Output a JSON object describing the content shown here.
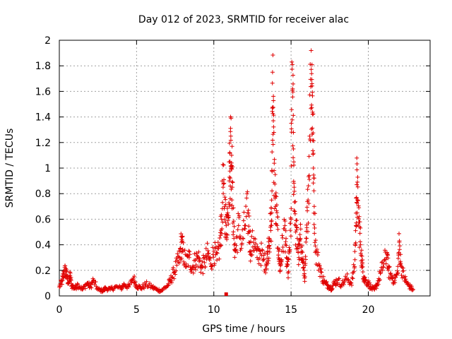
{
  "chart_data": {
    "type": "scatter",
    "title": "Day 012 of 2023, SRMTID for receiver alac",
    "xlabel": "GPS time / hours",
    "ylabel": "SRMTID / TECUs",
    "xlim": [
      0,
      24
    ],
    "ylim": [
      0,
      2
    ],
    "xticks": [
      0,
      5,
      10,
      15,
      20
    ],
    "xtick_labels": [
      "0",
      "5",
      "10",
      "15",
      "20"
    ],
    "yticks": [
      0,
      0.2,
      0.4,
      0.6,
      0.8,
      1,
      1.2,
      1.4,
      1.6,
      1.8,
      2
    ],
    "ytick_labels": [
      "0",
      "0.2",
      "0.4",
      "0.6",
      "0.8",
      "1",
      "1.2",
      "1.4",
      "1.6",
      "1.8",
      "2"
    ],
    "grid": true,
    "marker": "+",
    "color": "#e00000",
    "series": [
      {
        "name": "SRMTID",
        "x": [
          0.0,
          0.2,
          0.3,
          0.4,
          0.5,
          0.6,
          0.7,
          0.8,
          1.0,
          1.2,
          1.5,
          1.8,
          2.0,
          2.2,
          2.5,
          2.8,
          3.0,
          3.3,
          3.6,
          4.0,
          4.2,
          4.5,
          4.8,
          5.0,
          5.3,
          5.6,
          6.0,
          6.3,
          6.6,
          7.0,
          7.2,
          7.4,
          7.6,
          7.8,
          7.9,
          8.0,
          8.2,
          8.4,
          8.6,
          8.8,
          9.0,
          9.2,
          9.4,
          9.6,
          9.8,
          10.0,
          10.2,
          10.4,
          10.5,
          10.6,
          10.7,
          10.8,
          10.9,
          11.0,
          11.05,
          11.1,
          11.15,
          11.2,
          11.3,
          11.4,
          11.6,
          11.8,
          12.0,
          12.2,
          12.3,
          12.4,
          12.6,
          12.8,
          13.0,
          13.2,
          13.4,
          13.5,
          13.6,
          13.7,
          13.75,
          13.8,
          13.85,
          13.9,
          14.0,
          14.1,
          14.2,
          14.3,
          14.4,
          14.6,
          14.7,
          14.8,
          14.9,
          15.0,
          15.05,
          15.1,
          15.15,
          15.2,
          15.3,
          15.4,
          15.5,
          15.6,
          15.7,
          15.8,
          15.9,
          16.0,
          16.1,
          16.2,
          16.3,
          16.35,
          16.4,
          16.45,
          16.5,
          16.6,
          16.8,
          17.0,
          17.2,
          17.4,
          17.6,
          17.8,
          18.0,
          18.3,
          18.6,
          18.9,
          19.1,
          19.2,
          19.25,
          19.3,
          19.4,
          19.5,
          19.6,
          19.7,
          19.8,
          20.0,
          20.2,
          20.4,
          20.6,
          20.8,
          21.0,
          21.2,
          21.3,
          21.5,
          21.7,
          21.9,
          22.0,
          22.1,
          22.3,
          22.5,
          22.7,
          22.9
        ],
        "y": [
          0.07,
          0.12,
          0.18,
          0.2,
          0.15,
          0.1,
          0.16,
          0.08,
          0.06,
          0.09,
          0.05,
          0.1,
          0.07,
          0.12,
          0.05,
          0.04,
          0.06,
          0.05,
          0.07,
          0.06,
          0.09,
          0.07,
          0.14,
          0.08,
          0.06,
          0.09,
          0.07,
          0.05,
          0.04,
          0.08,
          0.12,
          0.18,
          0.24,
          0.3,
          0.42,
          0.35,
          0.25,
          0.3,
          0.22,
          0.28,
          0.3,
          0.22,
          0.26,
          0.33,
          0.25,
          0.35,
          0.28,
          0.4,
          0.6,
          0.85,
          0.7,
          0.55,
          0.65,
          0.9,
          1.05,
          1.25,
          1.1,
          0.85,
          0.45,
          0.35,
          0.55,
          0.4,
          0.55,
          0.65,
          0.5,
          0.35,
          0.45,
          0.3,
          0.35,
          0.28,
          0.25,
          0.35,
          0.45,
          0.55,
          0.65,
          1.75,
          1.37,
          0.98,
          0.7,
          0.55,
          0.35,
          0.2,
          0.35,
          0.55,
          0.3,
          0.18,
          0.35,
          0.6,
          1.83,
          1.62,
          1.15,
          0.85,
          0.5,
          0.45,
          0.3,
          0.45,
          0.35,
          0.22,
          0.15,
          0.45,
          0.75,
          1.25,
          1.92,
          1.66,
          1.42,
          1.0,
          0.7,
          0.35,
          0.25,
          0.15,
          0.1,
          0.08,
          0.06,
          0.1,
          0.12,
          0.09,
          0.14,
          0.1,
          0.22,
          0.55,
          0.87,
          0.75,
          0.58,
          0.4,
          0.25,
          0.15,
          0.12,
          0.1,
          0.06,
          0.05,
          0.1,
          0.18,
          0.25,
          0.33,
          0.2,
          0.15,
          0.12,
          0.18,
          0.42,
          0.25,
          0.15,
          0.1,
          0.07,
          0.05
        ]
      }
    ],
    "annotations": [
      {
        "text": "square marker near x axis",
        "x": 10.8,
        "y": 0.0
      }
    ]
  }
}
